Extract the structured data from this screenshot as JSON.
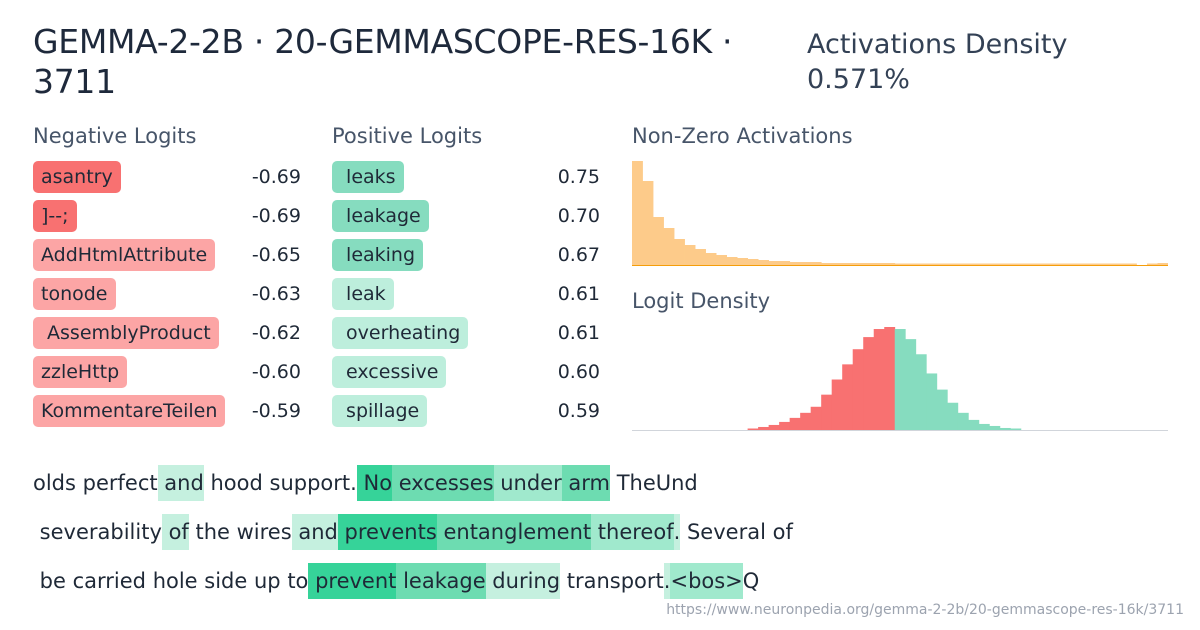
{
  "header": {
    "title": "GEMMA-2-2B · 20-GEMMASCOPE-RES-16K · 3711",
    "density_label": "Activations Density",
    "density_value": "0.571%"
  },
  "negative_logits": {
    "heading": "Negative Logits",
    "items": [
      {
        "token": "asantry",
        "value": "-0.69",
        "color": "#f87171"
      },
      {
        "token": "]--;",
        "value": "-0.69",
        "color": "#f87171"
      },
      {
        "token": "AddHtmlAttribute",
        "value": "-0.65",
        "color": "#fca5a5"
      },
      {
        "token": "tonode",
        "value": "-0.63",
        "color": "#fca5a5"
      },
      {
        "token": " AssemblyProduct",
        "value": "-0.62",
        "color": "#fca5a5"
      },
      {
        "token": "zzleHttp",
        "value": "-0.60",
        "color": "#fca5a5"
      },
      {
        "token": "KommentareTeilen",
        "value": "-0.59",
        "color": "#fca5a5"
      }
    ]
  },
  "positive_logits": {
    "heading": "Positive Logits",
    "items": [
      {
        "token": " leaks",
        "value": "0.75",
        "color": "#86dcbf"
      },
      {
        "token": " leakage",
        "value": "0.70",
        "color": "#86dcbf"
      },
      {
        "token": " leaking",
        "value": "0.67",
        "color": "#86dcbf"
      },
      {
        "token": " leak",
        "value": "0.61",
        "color": "#bdeedc"
      },
      {
        "token": " overheating",
        "value": "0.61",
        "color": "#bdeedc"
      },
      {
        "token": " excessive",
        "value": "0.60",
        "color": "#bdeedc"
      },
      {
        "token": " spillage",
        "value": "0.59",
        "color": "#bdeedc"
      }
    ]
  },
  "charts": {
    "activations_heading": "Non-Zero Activations",
    "logit_heading": "Logit Density",
    "activation_color": "#fdcb8a",
    "negative_color": "#f87171",
    "positive_color": "#86dcbf"
  },
  "chart_data": [
    {
      "type": "bar",
      "title": "Non-Zero Activations",
      "values": [
        104,
        84,
        48,
        37,
        26,
        20,
        16,
        12,
        10,
        8,
        7,
        6,
        5,
        4,
        4,
        3,
        3,
        3,
        2,
        2,
        2,
        2,
        2,
        2,
        2,
        1,
        1,
        1,
        1,
        1,
        1,
        1,
        1,
        1,
        1,
        1,
        1,
        1,
        1,
        1,
        1,
        1,
        1,
        1,
        1,
        1,
        1,
        1,
        0,
        1,
        2
      ]
    },
    {
      "type": "bar",
      "title": "Logit Density",
      "values": [
        0,
        0,
        0,
        0,
        0,
        0,
        0,
        0,
        0,
        0,
        0,
        1,
        3,
        5,
        8,
        12,
        17,
        23,
        35,
        50,
        65,
        80,
        92,
        100,
        102,
        100,
        90,
        75,
        56,
        40,
        27,
        17,
        10,
        6,
        4,
        2,
        1,
        0,
        0,
        0,
        0,
        0,
        0,
        0,
        0,
        0,
        0,
        0,
        0,
        0,
        0
      ],
      "split_index": 24
    }
  ],
  "activation_text": {
    "lines": [
      [
        {
          "t": "olds",
          "a": 0
        },
        {
          "t": " perfect",
          "a": 0
        },
        {
          "t": " and",
          "a": 1
        },
        {
          "t": " hood",
          "a": 0
        },
        {
          "t": " support",
          "a": 0
        },
        {
          "t": ".",
          "a": 0
        },
        {
          "t": " No",
          "a": 4
        },
        {
          "t": " excesses",
          "a": 3
        },
        {
          "t": " under",
          "a": 2
        },
        {
          "t": " arm",
          "a": 3
        },
        {
          "t": " The",
          "a": 0
        },
        {
          "t": "Und",
          "a": 0
        }
      ],
      [
        {
          "t": " severability",
          "a": 0
        },
        {
          "t": " of",
          "a": 1
        },
        {
          "t": " the",
          "a": 0
        },
        {
          "t": " wires",
          "a": 0
        },
        {
          "t": " and",
          "a": 1
        },
        {
          "t": " prevents",
          "a": 4
        },
        {
          "t": " entanglement",
          "a": 3
        },
        {
          "t": " thereof",
          "a": 2
        },
        {
          "t": ".",
          "a": 1
        },
        {
          "t": " Several",
          "a": 0
        },
        {
          "t": " of",
          "a": 0
        }
      ],
      [
        {
          "t": " be",
          "a": 0
        },
        {
          "t": " carried",
          "a": 0
        },
        {
          "t": " hole",
          "a": 0
        },
        {
          "t": " side",
          "a": 0
        },
        {
          "t": " up",
          "a": 0
        },
        {
          "t": " to",
          "a": 0
        },
        {
          "t": " prevent",
          "a": 4
        },
        {
          "t": " leakage",
          "a": 3
        },
        {
          "t": " during",
          "a": 1
        },
        {
          "t": " transport",
          "a": 0
        },
        {
          "t": ".",
          "a": 1
        },
        {
          "t": "<bos>",
          "a": 2
        },
        {
          "t": "Q",
          "a": 0
        }
      ]
    ],
    "level_colors": [
      "transparent",
      "#c5f0df",
      "#a0e9cd",
      "#6ddcb1",
      "#36d399"
    ]
  },
  "footer": {
    "url": "https://www.neuronpedia.org/gemma-2-2b/20-gemmascope-res-16k/3711"
  }
}
